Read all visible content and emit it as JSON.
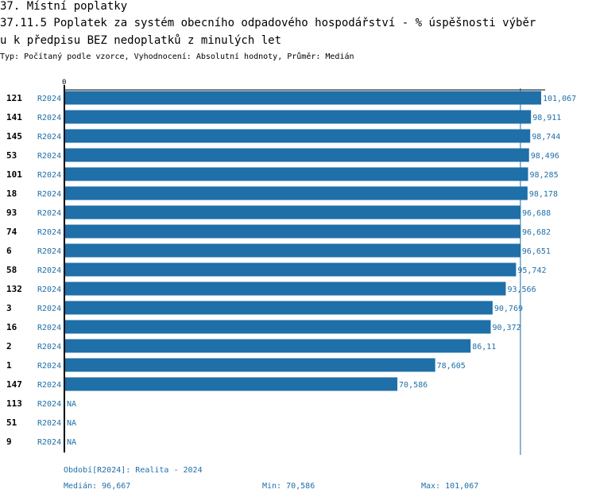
{
  "header": {
    "title_line1": "37. Místní poplatky",
    "title_line2": "37.11.5 Poplatek za systém obecního odpadového hospodářství  - % úspěšnosti výběr",
    "title_line3": "u k předpisu BEZ nedoplatků z minulých let",
    "subtitle": "Typ: Počítaný podle vzorce, Vyhodnocení: Absolutní hodnoty, Průměr: Medián"
  },
  "colors": {
    "bar": "#1f6fa8",
    "text_accent": "#1f6fa8",
    "axis": "#000000"
  },
  "chart_data": {
    "type": "bar",
    "orientation": "horizontal",
    "axis_zero_label": "0",
    "xlim": [
      0,
      101.067
    ],
    "median": 96.667,
    "series_label": "R2024",
    "rows": [
      {
        "id": "121",
        "series": "R2024",
        "value": 101.067,
        "label": "101,067"
      },
      {
        "id": "141",
        "series": "R2024",
        "value": 98.911,
        "label": "98,911"
      },
      {
        "id": "145",
        "series": "R2024",
        "value": 98.744,
        "label": "98,744"
      },
      {
        "id": "53",
        "series": "R2024",
        "value": 98.496,
        "label": "98,496"
      },
      {
        "id": "101",
        "series": "R2024",
        "value": 98.285,
        "label": "98,285"
      },
      {
        "id": "18",
        "series": "R2024",
        "value": 98.178,
        "label": "98,178"
      },
      {
        "id": "93",
        "series": "R2024",
        "value": 96.688,
        "label": "96,688"
      },
      {
        "id": "74",
        "series": "R2024",
        "value": 96.682,
        "label": "96,682"
      },
      {
        "id": "6",
        "series": "R2024",
        "value": 96.651,
        "label": "96,651"
      },
      {
        "id": "58",
        "series": "R2024",
        "value": 95.742,
        "label": "95,742"
      },
      {
        "id": "132",
        "series": "R2024",
        "value": 93.566,
        "label": "93,566"
      },
      {
        "id": "3",
        "series": "R2024",
        "value": 90.769,
        "label": "90,769"
      },
      {
        "id": "16",
        "series": "R2024",
        "value": 90.372,
        "label": "90,372"
      },
      {
        "id": "2",
        "series": "R2024",
        "value": 86.11,
        "label": "86,11"
      },
      {
        "id": "1",
        "series": "R2024",
        "value": 78.605,
        "label": "78,605"
      },
      {
        "id": "147",
        "series": "R2024",
        "value": 70.586,
        "label": "70,586"
      },
      {
        "id": "113",
        "series": "R2024",
        "value": null,
        "label": "NA"
      },
      {
        "id": "51",
        "series": "R2024",
        "value": null,
        "label": "NA"
      },
      {
        "id": "9",
        "series": "R2024",
        "value": null,
        "label": "NA"
      }
    ]
  },
  "footer": {
    "period": "Období[R2024]: Realita - 2024",
    "median": "Medián: 96,667",
    "min": "Min: 70,586",
    "max": "Max: 101,067"
  }
}
